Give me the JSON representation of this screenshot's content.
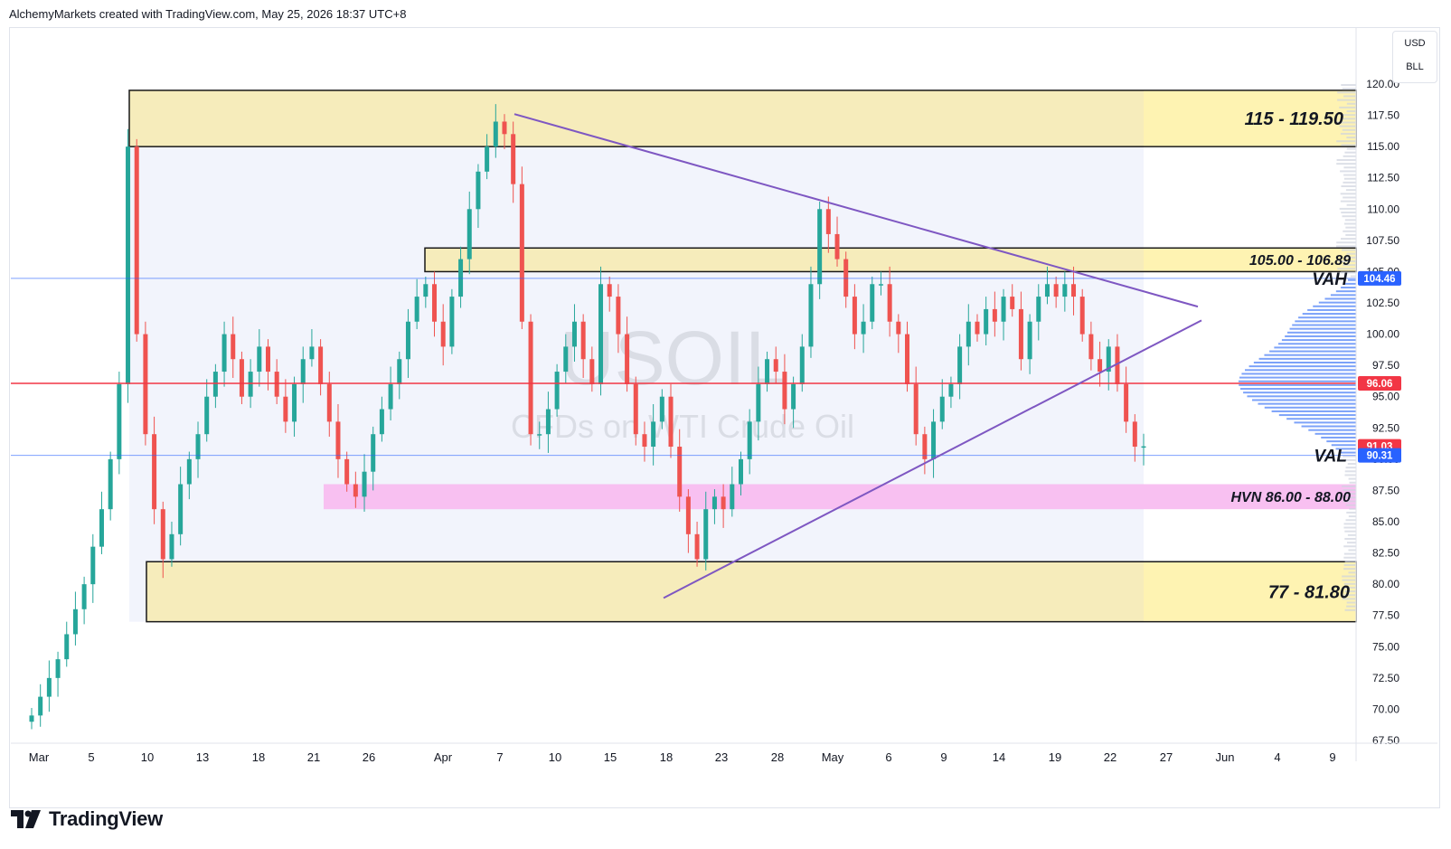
{
  "header": {
    "attribution": "AlchemyMarkets created with TradingView.com, May 25, 2026 18:37 UTC+8"
  },
  "watermark": {
    "symbol": "USOIL",
    "description": "CFDs on WTI Crude Oil"
  },
  "unit_selector": {
    "currency": "USD",
    "unit": "BLL"
  },
  "zones": [
    {
      "label": "115 - 119.50",
      "low": 115,
      "high": 119.5
    },
    {
      "label": "105.00 - 106.89",
      "low": 105,
      "high": 106.89
    },
    {
      "label": "HVN 86.00 - 88.00",
      "low": 86,
      "high": 88
    },
    {
      "label": "77 - 81.80",
      "low": 77,
      "high": 81.8
    }
  ],
  "levels": {
    "vah": {
      "label": "VAH",
      "value": "104.46"
    },
    "val": {
      "label": "VAL",
      "value": "90.31"
    },
    "poc": {
      "value": "96.06"
    },
    "last_price": {
      "value": "91.03"
    }
  },
  "colors": {
    "up": "#26a69a",
    "down": "#ef5350",
    "zone": "#f7ecb5",
    "hvn": "#f8bdf0",
    "line_blue": "#2962ff",
    "poc_red": "#f23645",
    "trend": "#7e57c2"
  },
  "y_axis": {
    "ticks": [
      "120.00",
      "117.50",
      "115.00",
      "112.50",
      "110.00",
      "107.50",
      "105.00",
      "102.50",
      "100.00",
      "97.50",
      "95.00",
      "92.50",
      "90.00",
      "87.50",
      "85.00",
      "82.50",
      "80.00",
      "77.50",
      "75.00",
      "72.50",
      "70.00",
      "67.50"
    ]
  },
  "x_axis": {
    "ticks": [
      "Mar",
      "5",
      "10",
      "13",
      "18",
      "21",
      "26",
      "Apr",
      "7",
      "10",
      "15",
      "18",
      "23",
      "28",
      "May",
      "6",
      "9",
      "14",
      "19",
      "22",
      "27",
      "Jun",
      "4",
      "9"
    ]
  },
  "footer": {
    "brand": "TradingView"
  },
  "chart_data": {
    "type": "candlestick",
    "symbol": "USOIL",
    "ylim": [
      67.5,
      120
    ],
    "approx_closes": [
      69.5,
      71,
      72.5,
      74,
      76,
      78,
      80,
      83,
      86,
      90,
      96,
      115,
      100,
      92,
      86,
      82,
      84,
      88,
      90,
      92,
      95,
      97,
      100,
      98,
      95,
      97,
      99,
      97,
      95,
      93,
      96,
      98,
      99,
      96,
      93,
      90,
      88,
      87,
      89,
      92,
      94,
      96,
      98,
      101,
      103,
      104,
      101,
      99,
      103,
      106,
      110,
      113,
      115,
      117,
      116,
      112,
      101,
      92,
      92,
      94,
      97,
      99,
      101,
      98,
      96,
      104,
      103,
      100,
      96,
      92,
      91,
      93,
      95,
      91,
      87,
      84,
      82,
      86,
      87,
      86,
      88,
      90,
      93,
      96,
      98,
      97,
      94,
      96,
      99,
      104,
      110,
      108,
      106,
      103,
      100,
      101,
      104,
      104,
      101,
      100,
      96,
      92,
      90,
      93,
      95,
      96,
      99,
      101,
      100,
      102,
      101,
      103,
      102,
      98,
      101,
      103,
      104,
      103,
      104,
      103,
      100,
      98,
      97,
      99,
      96,
      93,
      91,
      91.03
    ]
  }
}
